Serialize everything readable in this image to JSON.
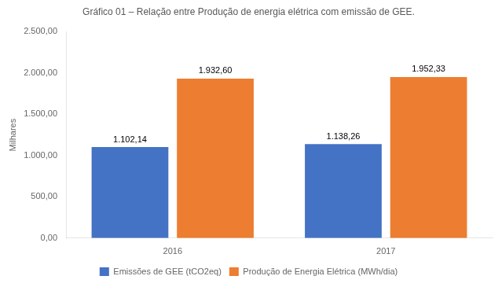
{
  "chart_data": {
    "type": "bar",
    "title": "Gráfico 01 – Relação entre Produção de energia elétrica com emissão de GEE.",
    "ylabel": "Milhares",
    "categories": [
      "2016",
      "2017"
    ],
    "series": [
      {
        "name": "Emissões de GEE (tCO2eq)",
        "color": "#4472C4",
        "values": [
          1102.14,
          1138.26
        ],
        "value_labels": [
          "1.102,14",
          "1.138,26"
        ]
      },
      {
        "name": "Produção de Energia Elétrica (MWh/dia)",
        "color": "#ED7D31",
        "values": [
          1932.6,
          1952.33
        ],
        "value_labels": [
          "1.932,60",
          "1.952,33"
        ]
      }
    ],
    "ylim": [
      0,
      2500
    ],
    "yticks": [
      {
        "value": 0,
        "label": "0,00"
      },
      {
        "value": 500,
        "label": "500,00"
      },
      {
        "value": 1000,
        "label": "1.000,00"
      },
      {
        "value": 1500,
        "label": "1.500,00"
      },
      {
        "value": 2000,
        "label": "2.000,00"
      },
      {
        "value": 2500,
        "label": "2.500,00"
      }
    ],
    "grid": false,
    "legend": "bottom",
    "data_labels": true
  }
}
